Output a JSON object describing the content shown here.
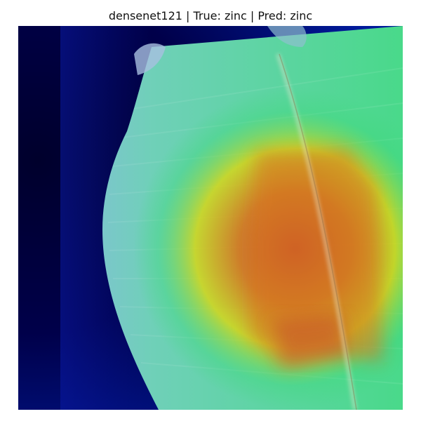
{
  "figure": {
    "title": "densenet121 | True: zinc | Pred: zinc",
    "model": "densenet121",
    "true_label": "zinc",
    "predicted_label": "zinc"
  },
  "image": {
    "subject": "leaf",
    "overlay": "heatmap",
    "colormap": "jet",
    "colors": {
      "background_low": "#00003a",
      "low": "#0a1aa8",
      "mid": "#3fd97a",
      "high_yellow": "#d6d61a",
      "peak_orange": "#d9751e",
      "peak_red": "#c9452a"
    }
  }
}
